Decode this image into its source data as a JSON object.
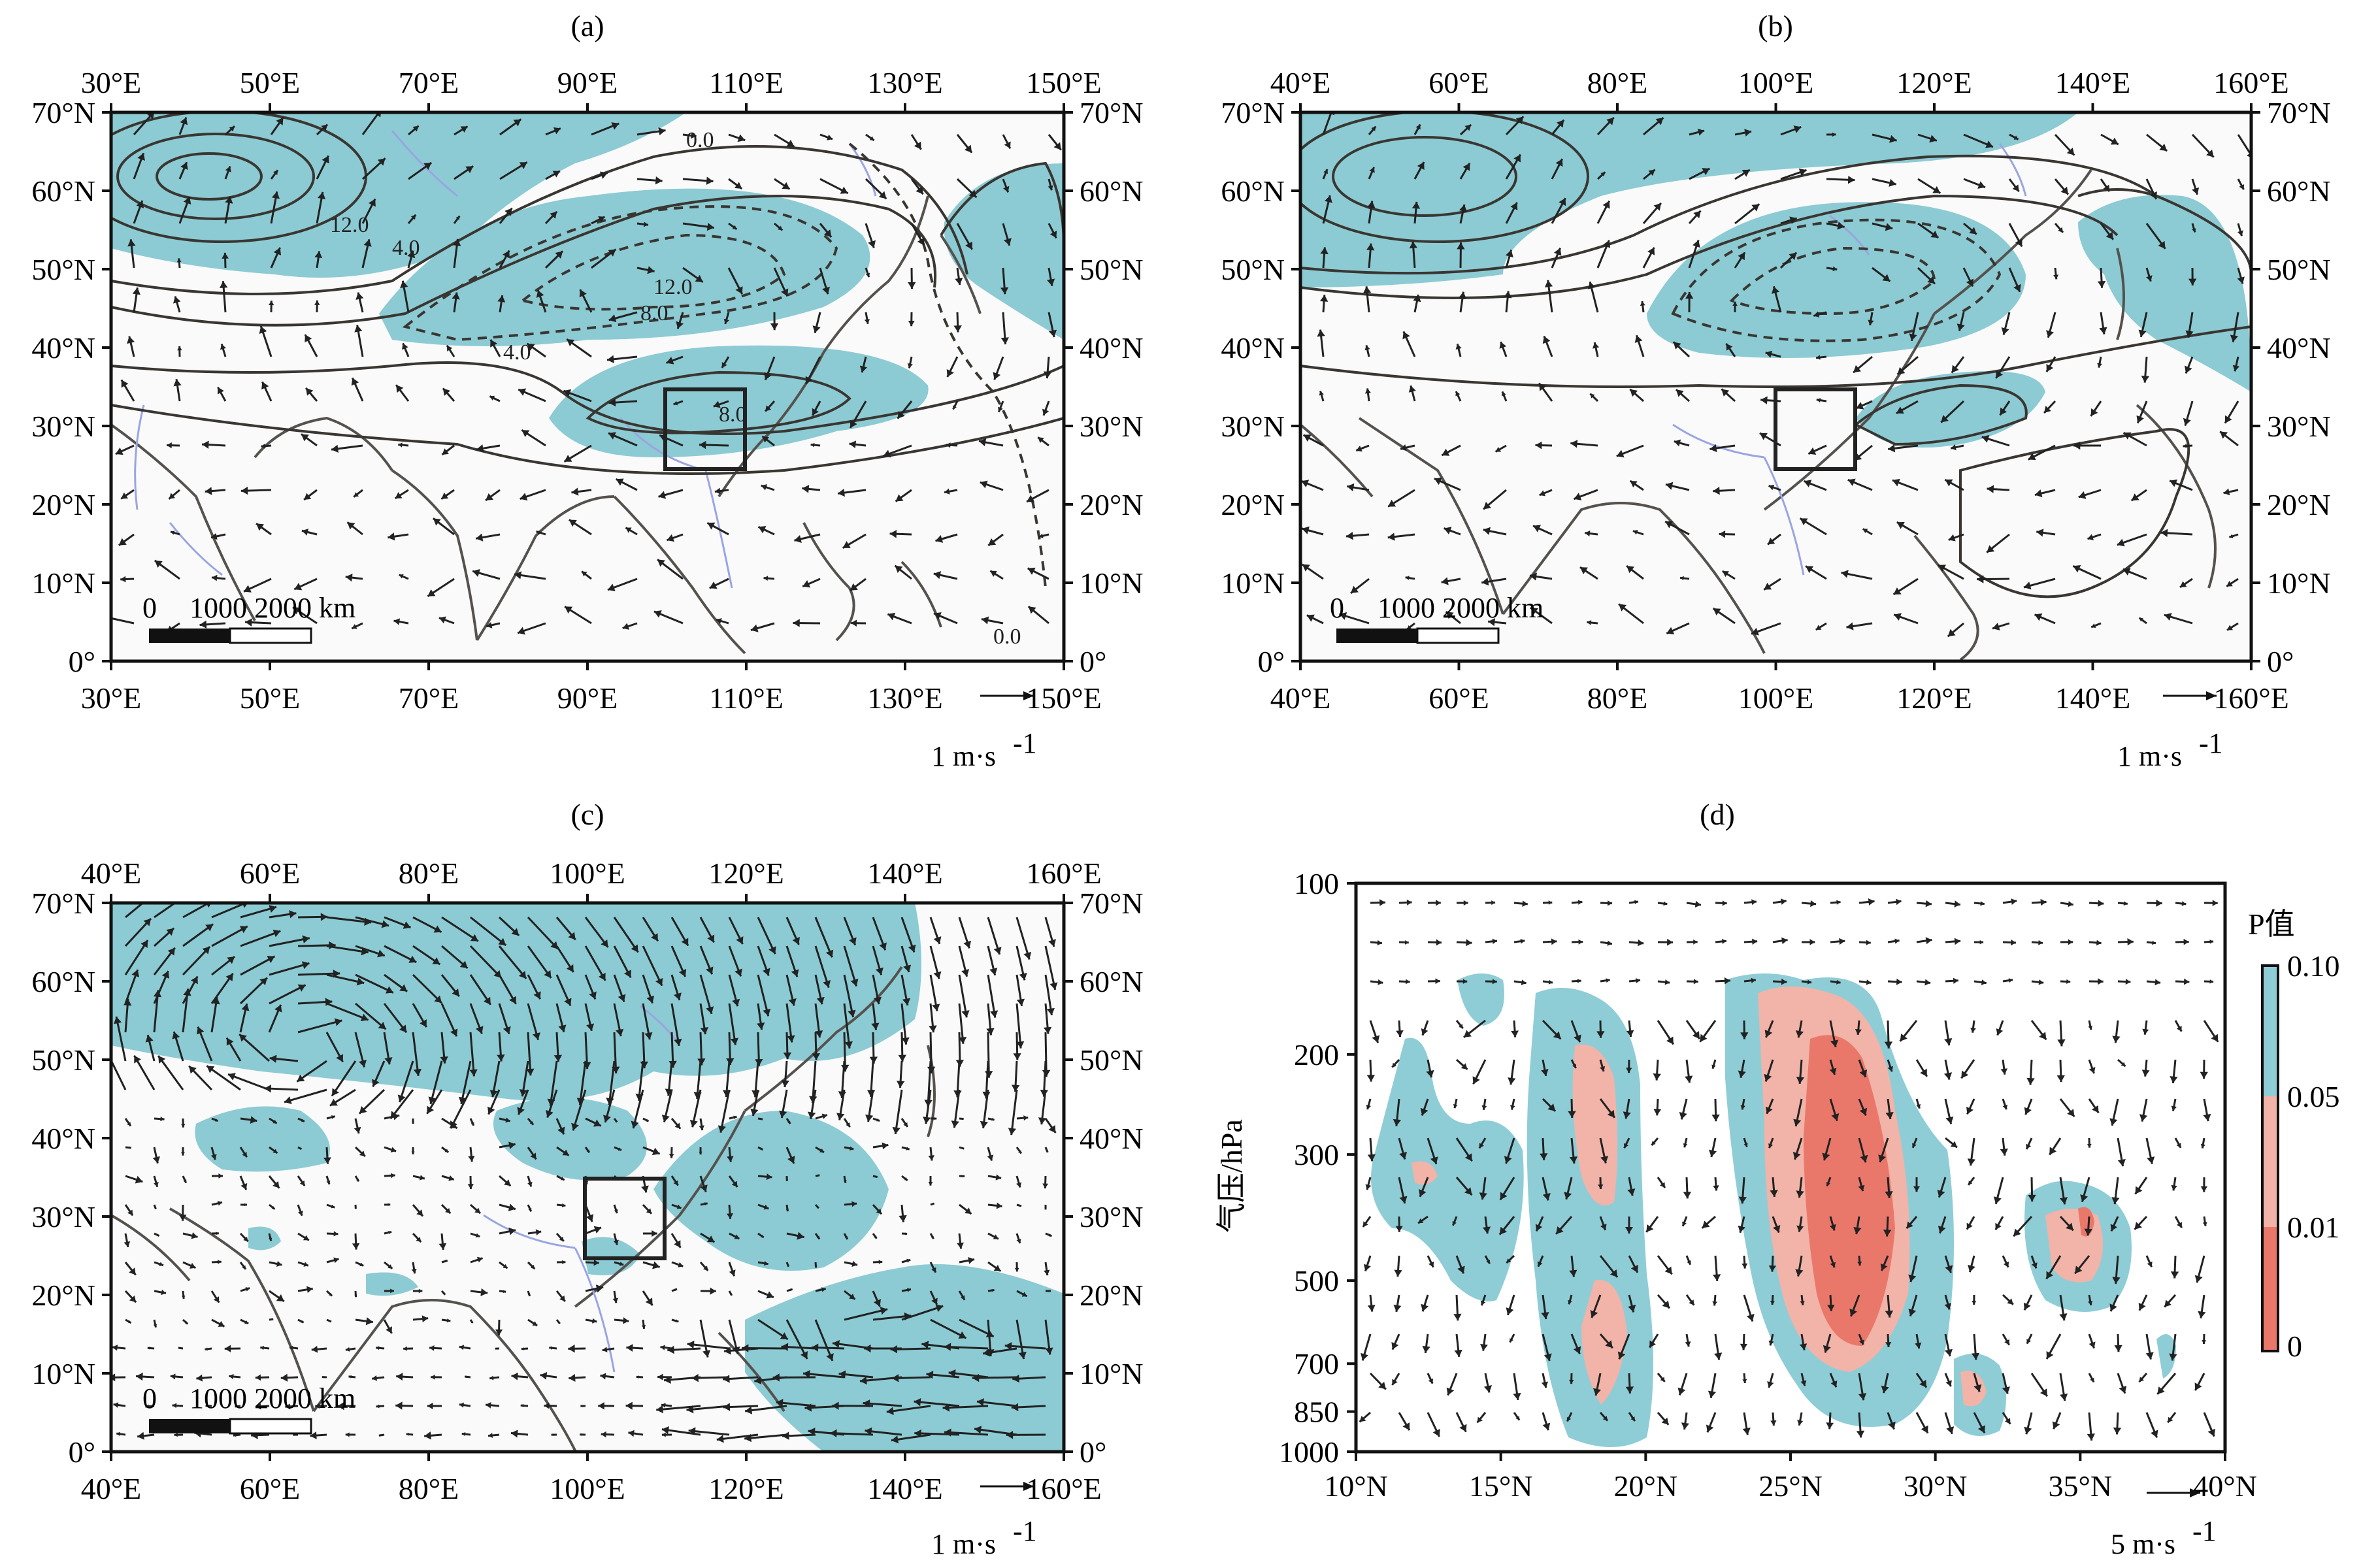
{
  "figure": {
    "panels": [
      {
        "id": "a",
        "label": "(a)",
        "lon_ticks": [
          "30°E",
          "50°E",
          "70°E",
          "90°E",
          "110°E",
          "130°E",
          "150°E"
        ],
        "lat_ticks": [
          "70°N",
          "60°N",
          "50°N",
          "40°N",
          "30°N",
          "20°N",
          "10°N",
          "0°"
        ],
        "scale_bar": {
          "labels": [
            "0",
            "1000 2000 km"
          ]
        },
        "vector_ref": {
          "label": "1 m·s",
          "exp": "-1"
        },
        "contour_labels": [
          "0.0",
          "12.0",
          "4.0",
          "12.0",
          "8.0",
          "4.0",
          "8.0",
          "0.0"
        ],
        "box": {
          "lon": [
            100,
            110
          ],
          "lat": [
            25,
            35
          ]
        }
      },
      {
        "id": "b",
        "label": "(b)",
        "lon_ticks": [
          "40°E",
          "60°E",
          "80°E",
          "100°E",
          "120°E",
          "140°E",
          "160°E"
        ],
        "lat_ticks": [
          "70°N",
          "60°N",
          "50°N",
          "40°N",
          "30°N",
          "20°N",
          "10°N",
          "0°"
        ],
        "scale_bar": {
          "labels": [
            "0",
            "1000 2000 km"
          ]
        },
        "vector_ref": {
          "label": "1 m·s",
          "exp": "-1"
        },
        "box": {
          "lon": [
            100,
            110
          ],
          "lat": [
            25,
            35
          ]
        }
      },
      {
        "id": "c",
        "label": "(c)",
        "lon_ticks": [
          "40°E",
          "60°E",
          "80°E",
          "100°E",
          "120°E",
          "140°E",
          "160°E"
        ],
        "lat_ticks": [
          "70°N",
          "60°N",
          "50°N",
          "40°N",
          "30°N",
          "20°N",
          "10°N",
          "0°"
        ],
        "scale_bar": {
          "labels": [
            "0",
            "1000 2000 km"
          ]
        },
        "vector_ref": {
          "label": "1 m·s",
          "exp": "-1"
        },
        "box": {
          "lon": [
            100,
            110
          ],
          "lat": [
            25,
            35
          ]
        }
      },
      {
        "id": "d",
        "label": "(d)",
        "x_ticks": [
          "10°N",
          "15°N",
          "20°N",
          "25°N",
          "30°N",
          "35°N",
          "40°N"
        ],
        "y_ticks": [
          "100",
          "200",
          "300",
          "500",
          "700",
          "850",
          "1000"
        ],
        "y_label": "气压/hPa",
        "vector_ref": {
          "label": "5 m·s",
          "exp": "-1"
        },
        "colorbar": {
          "title": "P值",
          "ticks": [
            "0.10",
            "0.05",
            "0.01",
            "0"
          ]
        }
      }
    ],
    "colors": {
      "shade_map": "#8ccbd3",
      "shade_p10": "#8fcdd6",
      "shade_p05": "#f2b3a8",
      "shade_p01": "#e9786b",
      "land_line": "#55524e",
      "river": "#9aa5e0",
      "contour": "#3a3632"
    }
  }
}
